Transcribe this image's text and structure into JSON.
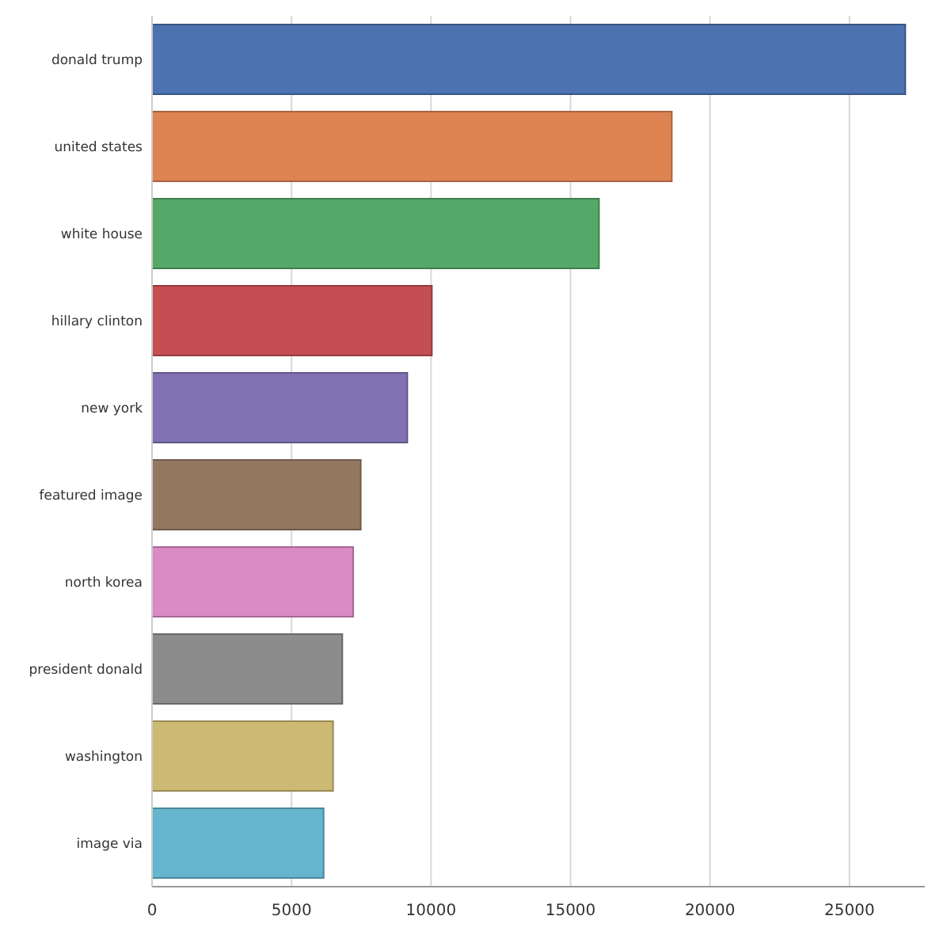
{
  "chart_data": {
    "type": "bar",
    "orientation": "horizontal",
    "categories": [
      "donald trump",
      "united states",
      "white house",
      "hillary clinton",
      "new york",
      "featured image",
      "north korea",
      "president donald",
      "washington",
      "image via"
    ],
    "values": [
      27000,
      18630,
      16020,
      10030,
      9150,
      7480,
      7210,
      6820,
      6490,
      6150
    ],
    "colors": [
      "#4c72b0",
      "#dd8452",
      "#55a868",
      "#c44e52",
      "#8172b3",
      "#937860",
      "#da8bc3",
      "#8c8c8c",
      "#ccb974",
      "#64b5cd"
    ],
    "xlim": [
      0,
      27700
    ],
    "xticks": [
      0,
      5000,
      10000,
      15000,
      20000,
      25000
    ],
    "grid": "x"
  }
}
